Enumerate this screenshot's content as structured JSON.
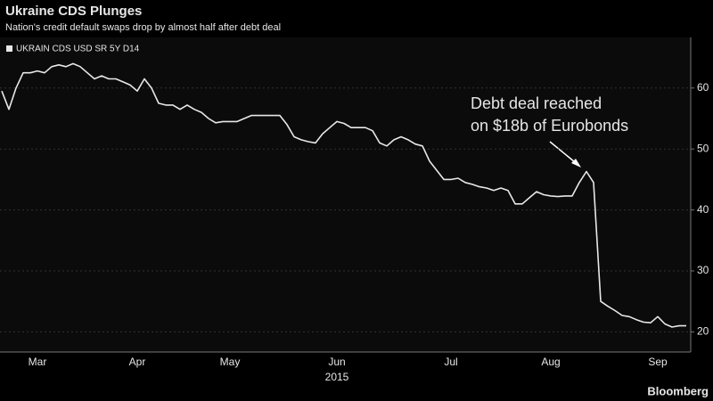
{
  "chart_data": {
    "type": "line",
    "title": "Ukraine CDS Plunges",
    "subtitle": "Nation's credit default swaps drop by almost half after debt deal",
    "categories": [
      null,
      null,
      null,
      null,
      null,
      "Mar",
      null,
      null,
      null,
      null,
      null,
      null,
      null,
      null,
      null,
      null,
      null,
      null,
      null,
      "Apr",
      null,
      null,
      null,
      null,
      null,
      null,
      null,
      null,
      null,
      null,
      null,
      null,
      "May",
      null,
      null,
      null,
      null,
      null,
      null,
      null,
      null,
      null,
      null,
      null,
      null,
      null,
      null,
      "Jun",
      null,
      null,
      null,
      null,
      null,
      null,
      null,
      null,
      null,
      null,
      null,
      null,
      null,
      null,
      null,
      "Jul",
      null,
      null,
      null,
      null,
      null,
      null,
      null,
      null,
      null,
      null,
      null,
      null,
      null,
      "Aug",
      null,
      null,
      null,
      null,
      null,
      null,
      null,
      null,
      null,
      null,
      null,
      null,
      null,
      null,
      "Sep",
      null,
      null,
      null,
      null
    ],
    "xlabel": "2015",
    "series": [
      {
        "name": "UKRAIN CDS USD SR 5Y D14",
        "color": "#e8e8e8",
        "values": [
          59.5,
          56.5,
          60,
          62.5,
          62.5,
          62.8,
          62.5,
          63.5,
          63.8,
          63.5,
          64,
          63.5,
          62.5,
          61.5,
          62,
          61.5,
          61.5,
          61,
          60.5,
          59.5,
          61.5,
          60,
          57.5,
          57.2,
          57.2,
          56.5,
          57.2,
          56.5,
          56,
          55,
          54.3,
          54.5,
          54.5,
          54.5,
          55,
          55.5,
          55.5,
          55.5,
          55.5,
          55.5,
          54,
          52,
          51.5,
          51.2,
          51,
          52.5,
          53.5,
          54.5,
          54.2,
          53.5,
          53.5,
          53.5,
          53,
          51,
          50.5,
          51.5,
          52,
          51.5,
          50.8,
          50.5,
          48,
          46.5,
          45,
          45,
          45.2,
          44.5,
          44.2,
          43.8,
          43.6,
          43.2,
          43.6,
          43.2,
          41,
          41,
          42,
          43,
          42.5,
          42.3,
          42.2,
          42.3,
          42.3,
          44.5,
          46.3,
          44.5,
          25,
          24.2,
          23.5,
          22.7,
          22.5,
          22,
          21.6,
          21.5,
          22.5,
          21.3,
          20.8,
          21,
          21
        ]
      }
    ],
    "ylim": [
      16.7,
      68.3
    ],
    "yticks": [
      20,
      30,
      40,
      50,
      60
    ],
    "grid": true,
    "annotations": [
      "Debt deal reached",
      "on $18b of Eurobonds"
    ],
    "source": "Bloomberg"
  }
}
